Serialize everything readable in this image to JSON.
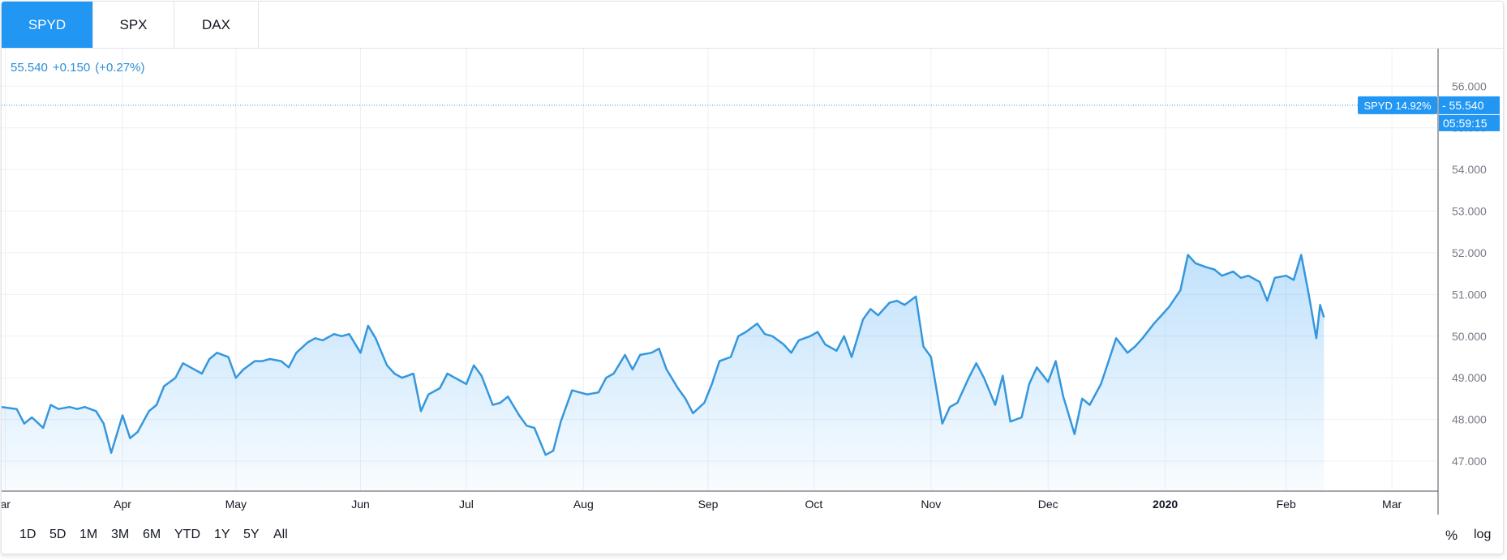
{
  "tabs": [
    {
      "label": "SPYD",
      "active": true
    },
    {
      "label": "SPX",
      "active": false
    },
    {
      "label": "DAX",
      "active": false
    }
  ],
  "legend": {
    "price": "55.540",
    "change": "+0.150",
    "change_pct": "(+0.27%)"
  },
  "price_tag": {
    "symbol_label": "SPYD 14.92%",
    "price": "55.540",
    "countdown": "05:59:15"
  },
  "range_buttons": [
    "1D",
    "5D",
    "1M",
    "3M",
    "6M",
    "YTD",
    "1Y",
    "5Y",
    "All"
  ],
  "scale_buttons": {
    "percent": "%",
    "log": "log"
  },
  "colors": {
    "accent": "#2196f3",
    "line": "#3597dd",
    "grid": "#ecf0f5",
    "axis": "#787b86"
  },
  "chart_data": {
    "type": "area",
    "title": "",
    "xlabel": "",
    "ylabel": "",
    "ylim": [
      46.3,
      56.9
    ],
    "xlim": [
      "2019-02-28",
      "2020-03-14"
    ],
    "grid": true,
    "y_ticks": [
      "47.000",
      "48.000",
      "49.000",
      "50.000",
      "51.000",
      "52.000",
      "53.000",
      "54.000",
      "55.000",
      "56.000"
    ],
    "x_ticks": [
      {
        "label": "ar",
        "date": "2019-03-01",
        "bold": false
      },
      {
        "label": "Apr",
        "date": "2019-04-01",
        "bold": false
      },
      {
        "label": "May",
        "date": "2019-05-01",
        "bold": false
      },
      {
        "label": "Jun",
        "date": "2019-06-03",
        "bold": false
      },
      {
        "label": "Jul",
        "date": "2019-07-01",
        "bold": false
      },
      {
        "label": "Aug",
        "date": "2019-08-01",
        "bold": false
      },
      {
        "label": "Sep",
        "date": "2019-09-03",
        "bold": false
      },
      {
        "label": "Oct",
        "date": "2019-10-01",
        "bold": false
      },
      {
        "label": "Nov",
        "date": "2019-11-01",
        "bold": false
      },
      {
        "label": "Dec",
        "date": "2019-12-02",
        "bold": false
      },
      {
        "label": "2020",
        "date": "2020-01-02",
        "bold": true
      },
      {
        "label": "Feb",
        "date": "2020-02-03",
        "bold": false
      },
      {
        "label": "Mar",
        "date": "2020-03-02",
        "bold": false
      }
    ],
    "series": [
      {
        "points": [
          [
            "2019-02-28",
            48.3
          ],
          [
            "2019-03-04",
            48.25
          ],
          [
            "2019-03-06",
            47.9
          ],
          [
            "2019-03-08",
            48.05
          ],
          [
            "2019-03-11",
            47.8
          ],
          [
            "2019-03-13",
            48.35
          ],
          [
            "2019-03-15",
            48.25
          ],
          [
            "2019-03-18",
            48.3
          ],
          [
            "2019-03-20",
            48.25
          ],
          [
            "2019-03-22",
            48.3
          ],
          [
            "2019-03-25",
            48.2
          ],
          [
            "2019-03-27",
            47.9
          ],
          [
            "2019-03-29",
            47.2
          ],
          [
            "2019-04-01",
            48.1
          ],
          [
            "2019-04-03",
            47.55
          ],
          [
            "2019-04-05",
            47.7
          ],
          [
            "2019-04-08",
            48.2
          ],
          [
            "2019-04-10",
            48.35
          ],
          [
            "2019-04-12",
            48.8
          ],
          [
            "2019-04-15",
            49.0
          ],
          [
            "2019-04-17",
            49.35
          ],
          [
            "2019-04-19",
            49.25
          ],
          [
            "2019-04-22",
            49.1
          ],
          [
            "2019-04-24",
            49.45
          ],
          [
            "2019-04-26",
            49.6
          ],
          [
            "2019-04-29",
            49.5
          ],
          [
            "2019-05-01",
            49.0
          ],
          [
            "2019-05-03",
            49.2
          ],
          [
            "2019-05-06",
            49.4
          ],
          [
            "2019-05-08",
            49.4
          ],
          [
            "2019-05-10",
            49.45
          ],
          [
            "2019-05-13",
            49.4
          ],
          [
            "2019-05-15",
            49.25
          ],
          [
            "2019-05-17",
            49.6
          ],
          [
            "2019-05-20",
            49.85
          ],
          [
            "2019-05-22",
            49.95
          ],
          [
            "2019-05-24",
            49.9
          ],
          [
            "2019-05-27",
            50.05
          ],
          [
            "2019-05-29",
            50.0
          ],
          [
            "2019-05-31",
            50.05
          ],
          [
            "2019-06-03",
            49.6
          ],
          [
            "2019-06-05",
            50.25
          ],
          [
            "2019-06-07",
            49.95
          ],
          [
            "2019-06-10",
            49.3
          ],
          [
            "2019-06-12",
            49.1
          ],
          [
            "2019-06-14",
            49.0
          ],
          [
            "2019-06-17",
            49.1
          ],
          [
            "2019-06-19",
            48.2
          ],
          [
            "2019-06-21",
            48.6
          ],
          [
            "2019-06-24",
            48.75
          ],
          [
            "2019-06-26",
            49.1
          ],
          [
            "2019-06-28",
            49.0
          ],
          [
            "2019-07-01",
            48.85
          ],
          [
            "2019-07-03",
            49.3
          ],
          [
            "2019-07-05",
            49.05
          ],
          [
            "2019-07-08",
            48.35
          ],
          [
            "2019-07-10",
            48.4
          ],
          [
            "2019-07-12",
            48.55
          ],
          [
            "2019-07-15",
            48.1
          ],
          [
            "2019-07-17",
            47.85
          ],
          [
            "2019-07-19",
            47.8
          ],
          [
            "2019-07-22",
            47.15
          ],
          [
            "2019-07-24",
            47.25
          ],
          [
            "2019-07-26",
            47.95
          ],
          [
            "2019-07-29",
            48.7
          ],
          [
            "2019-07-31",
            48.65
          ],
          [
            "2019-08-02",
            48.6
          ],
          [
            "2019-08-05",
            48.65
          ],
          [
            "2019-08-07",
            49.0
          ],
          [
            "2019-08-09",
            49.1
          ],
          [
            "2019-08-12",
            49.55
          ],
          [
            "2019-08-14",
            49.2
          ],
          [
            "2019-08-16",
            49.55
          ],
          [
            "2019-08-19",
            49.6
          ],
          [
            "2019-08-21",
            49.7
          ],
          [
            "2019-08-23",
            49.2
          ],
          [
            "2019-08-26",
            48.75
          ],
          [
            "2019-08-28",
            48.5
          ],
          [
            "2019-08-30",
            48.15
          ],
          [
            "2019-09-02",
            48.4
          ],
          [
            "2019-09-04",
            48.85
          ],
          [
            "2019-09-06",
            49.4
          ],
          [
            "2019-09-09",
            49.5
          ],
          [
            "2019-09-11",
            50.0
          ],
          [
            "2019-09-13",
            50.1
          ],
          [
            "2019-09-16",
            50.3
          ],
          [
            "2019-09-18",
            50.05
          ],
          [
            "2019-09-20",
            50.0
          ],
          [
            "2019-09-23",
            49.8
          ],
          [
            "2019-09-25",
            49.6
          ],
          [
            "2019-09-27",
            49.9
          ],
          [
            "2019-09-30",
            50.0
          ],
          [
            "2019-10-02",
            50.1
          ],
          [
            "2019-10-04",
            49.8
          ],
          [
            "2019-10-07",
            49.65
          ],
          [
            "2019-10-09",
            50.0
          ],
          [
            "2019-10-11",
            49.5
          ],
          [
            "2019-10-14",
            50.4
          ],
          [
            "2019-10-16",
            50.65
          ],
          [
            "2019-10-18",
            50.5
          ],
          [
            "2019-10-21",
            50.8
          ],
          [
            "2019-10-23",
            50.85
          ],
          [
            "2019-10-25",
            50.75
          ],
          [
            "2019-10-28",
            50.95
          ],
          [
            "2019-10-30",
            49.75
          ],
          [
            "2019-11-01",
            49.5
          ],
          [
            "2019-11-04",
            47.9
          ],
          [
            "2019-11-06",
            48.3
          ],
          [
            "2019-11-08",
            48.4
          ],
          [
            "2019-11-11",
            49.0
          ],
          [
            "2019-11-13",
            49.35
          ],
          [
            "2019-11-15",
            49.0
          ],
          [
            "2019-11-18",
            48.35
          ],
          [
            "2019-11-20",
            49.05
          ],
          [
            "2019-11-22",
            47.95
          ],
          [
            "2019-11-25",
            48.05
          ],
          [
            "2019-11-27",
            48.85
          ],
          [
            "2019-11-29",
            49.25
          ],
          [
            "2019-12-02",
            48.9
          ],
          [
            "2019-12-04",
            49.4
          ],
          [
            "2019-12-06",
            48.55
          ],
          [
            "2019-12-09",
            47.65
          ],
          [
            "2019-12-11",
            48.5
          ],
          [
            "2019-12-13",
            48.35
          ],
          [
            "2019-12-16",
            48.85
          ],
          [
            "2019-12-18",
            49.4
          ],
          [
            "2019-12-20",
            49.95
          ],
          [
            "2019-12-23",
            49.6
          ],
          [
            "2019-12-25",
            49.75
          ],
          [
            "2019-12-27",
            49.95
          ],
          [
            "2019-12-30",
            50.3
          ],
          [
            "2020-01-01",
            50.5
          ],
          [
            "2020-01-03",
            50.7
          ],
          [
            "2020-01-06",
            51.1
          ],
          [
            "2020-01-08",
            51.95
          ],
          [
            "2020-01-10",
            51.75
          ],
          [
            "2020-01-13",
            51.65
          ],
          [
            "2020-01-15",
            51.6
          ],
          [
            "2020-01-17",
            51.45
          ],
          [
            "2020-01-20",
            51.55
          ],
          [
            "2020-01-22",
            51.4
          ],
          [
            "2020-01-24",
            51.45
          ],
          [
            "2020-01-27",
            51.3
          ],
          [
            "2020-01-29",
            50.85
          ],
          [
            "2020-01-31",
            51.4
          ],
          [
            "2020-02-03",
            51.45
          ],
          [
            "2020-02-05",
            51.35
          ],
          [
            "2020-02-07",
            51.95
          ],
          [
            "2020-02-09",
            51.0
          ],
          [
            "2020-02-11",
            49.95
          ],
          [
            "2020-02-12",
            50.75
          ],
          [
            "2020-02-13",
            50.45
          ]
        ]
      }
    ]
  }
}
